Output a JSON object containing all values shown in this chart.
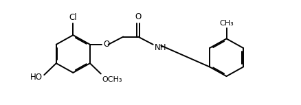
{
  "background_color": "#ffffff",
  "line_color": "#000000",
  "line_width": 1.4,
  "font_size": 8.5,
  "figsize": [
    4.38,
    1.53
  ],
  "dpi": 100,
  "xlim": [
    0,
    10.5
  ],
  "ylim": [
    0,
    3.8
  ]
}
